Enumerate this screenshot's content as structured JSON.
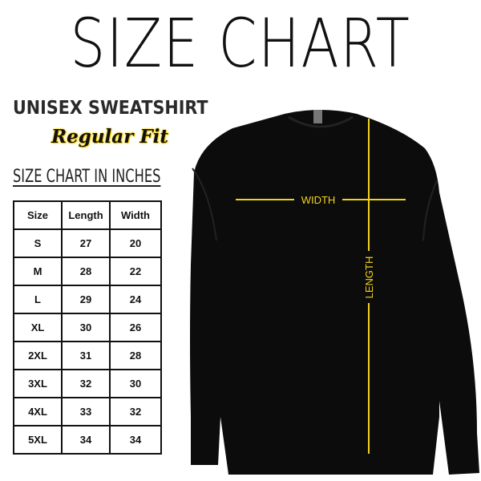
{
  "title": "SIZE CHART",
  "subtitle": "UNISEX SWEATSHIRT",
  "fit": "Regular Fit",
  "table_caption": "SIZE CHART IN INCHES",
  "headers": [
    "Size",
    "Length",
    "Width"
  ],
  "rows": [
    [
      "S",
      "27",
      "20"
    ],
    [
      "M",
      "28",
      "22"
    ],
    [
      "L",
      "29",
      "24"
    ],
    [
      "XL",
      "30",
      "26"
    ],
    [
      "2XL",
      "31",
      "28"
    ],
    [
      "3XL",
      "32",
      "30"
    ],
    [
      "4XL",
      "33",
      "32"
    ],
    [
      "5XL",
      "34",
      "34"
    ]
  ],
  "labels": {
    "width": "WIDTH",
    "length": "LENGTH"
  },
  "colors": {
    "measure_line": "#f2d21b",
    "garment": "#0c0c0c"
  }
}
